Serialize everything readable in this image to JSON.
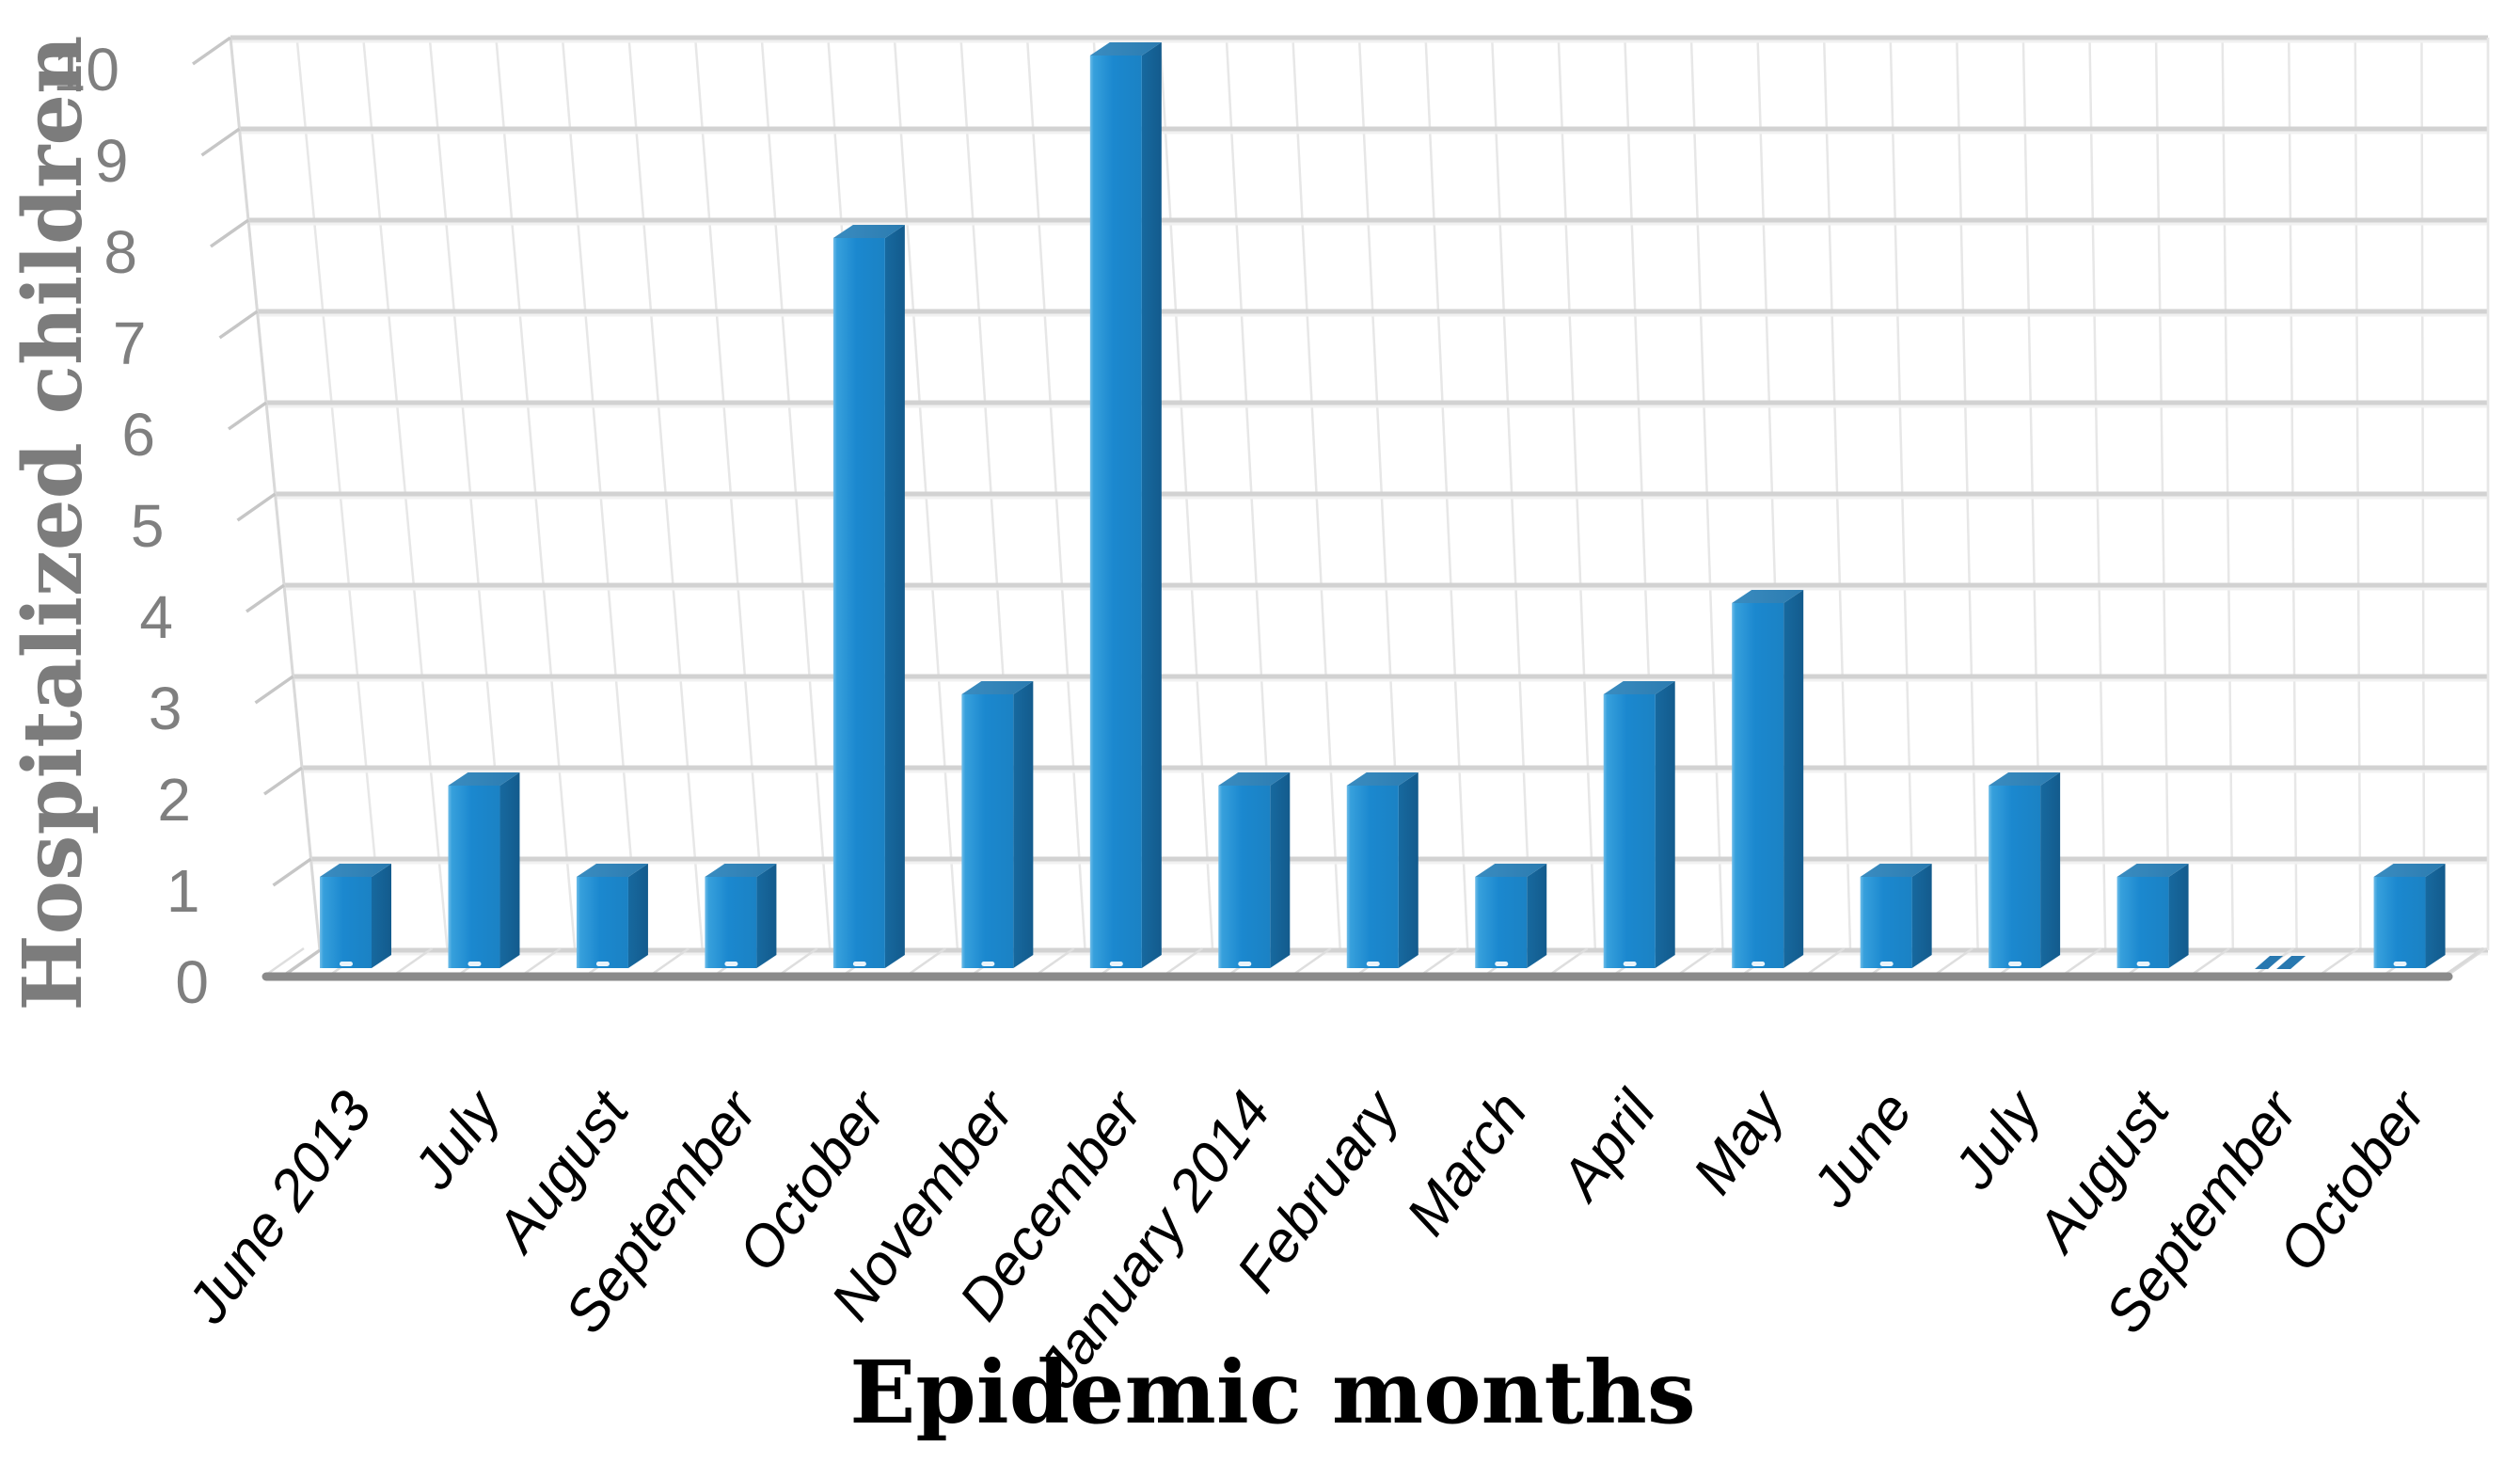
{
  "chart_data": {
    "type": "bar",
    "projection": "3d",
    "title": "",
    "xlabel": "Epidemic months",
    "ylabel": "Hospitalized children",
    "categories": [
      "June 2013",
      "July",
      "August",
      "September",
      "October",
      "November",
      "December",
      "January 2014",
      "February",
      "March",
      "April",
      "May",
      "June",
      "July",
      "August",
      "September",
      "October"
    ],
    "values": [
      1,
      2,
      1,
      1,
      8,
      3,
      10,
      2,
      2,
      1,
      3,
      4,
      1,
      2,
      1,
      0,
      1
    ],
    "series_name": "Hospitalized children",
    "ylim": [
      0,
      10
    ],
    "ytick_step": 1,
    "yticks": [
      0,
      1,
      2,
      3,
      4,
      5,
      6,
      7,
      8,
      9,
      10
    ],
    "grid": true,
    "legend": false,
    "x_label_rotation_deg": -54,
    "colors": {
      "bar_front": "#1b88cf",
      "bar_front_highlight": "#6fbde9",
      "bar_front_edge": "#1b82c4",
      "bar_side": "#16679d",
      "bar_top": "#2e81b6",
      "bar_zero_sliver": "#2878b0",
      "axis_line": "#8a8a8a",
      "major_gridline": "#d2d2d2",
      "minor_gridline": "#e7e7e7",
      "tick_connector": "#c6c6c6",
      "floor_separator": "#dedede",
      "wall_edge": "#d9d9d9",
      "tick_label": "#7f7f7f",
      "y_axis_title": "#7c7c7c",
      "x_axis_title": "#000000",
      "background": "#ffffff"
    }
  }
}
